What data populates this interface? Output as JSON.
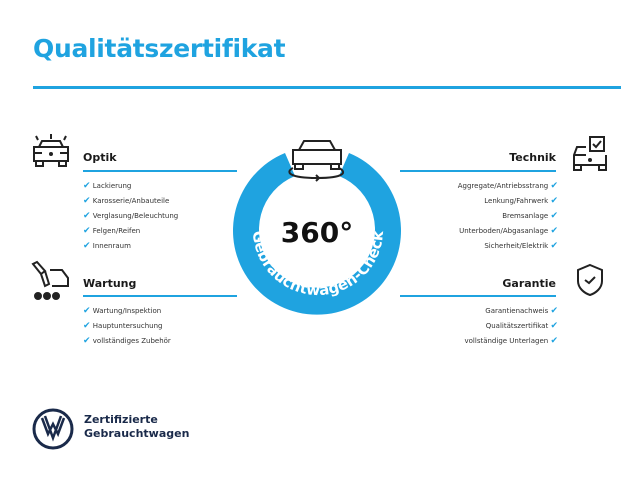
{
  "title": "Qualitätszertifikat",
  "center": {
    "number": "360°",
    "arc_text": "Gebrauchtwagen-Check",
    "icon": "car-rotate-icon"
  },
  "sections": {
    "optik": {
      "title": "Optik",
      "icon": "car-lights-icon",
      "items": [
        "Lackierung",
        "Karosserie/Anbauteile",
        "Verglasung/Beleuchtung",
        "Felgen/Reifen",
        "Innenraum"
      ]
    },
    "wartung": {
      "title": "Wartung",
      "icon": "wrench-car-icon",
      "items": [
        "Wartung/Inspektion",
        "Hauptuntersuchung",
        "vollständiges Zubehör"
      ]
    },
    "technik": {
      "title": "Technik",
      "icon": "car-checklist-icon",
      "items": [
        "Aggregate/Antriebsstrang",
        "Lenkung/Fahrwerk",
        "Bremsanlage",
        "Unterboden/Abgasanlage",
        "Sicherheit/Elektrik"
      ]
    },
    "garantie": {
      "title": "Garantie",
      "icon": "shield-check-icon",
      "items": [
        "Garantienachweis",
        "Qualitätszertifikat",
        "vollständige Unterlagen"
      ]
    }
  },
  "brand": {
    "line1": "Zertifizierte",
    "line2": "Gebrauchtwagen",
    "logo": "vw-logo"
  },
  "colors": {
    "accent": "#1fa3e0",
    "dark": "#1a2a4a"
  },
  "check": "✔"
}
